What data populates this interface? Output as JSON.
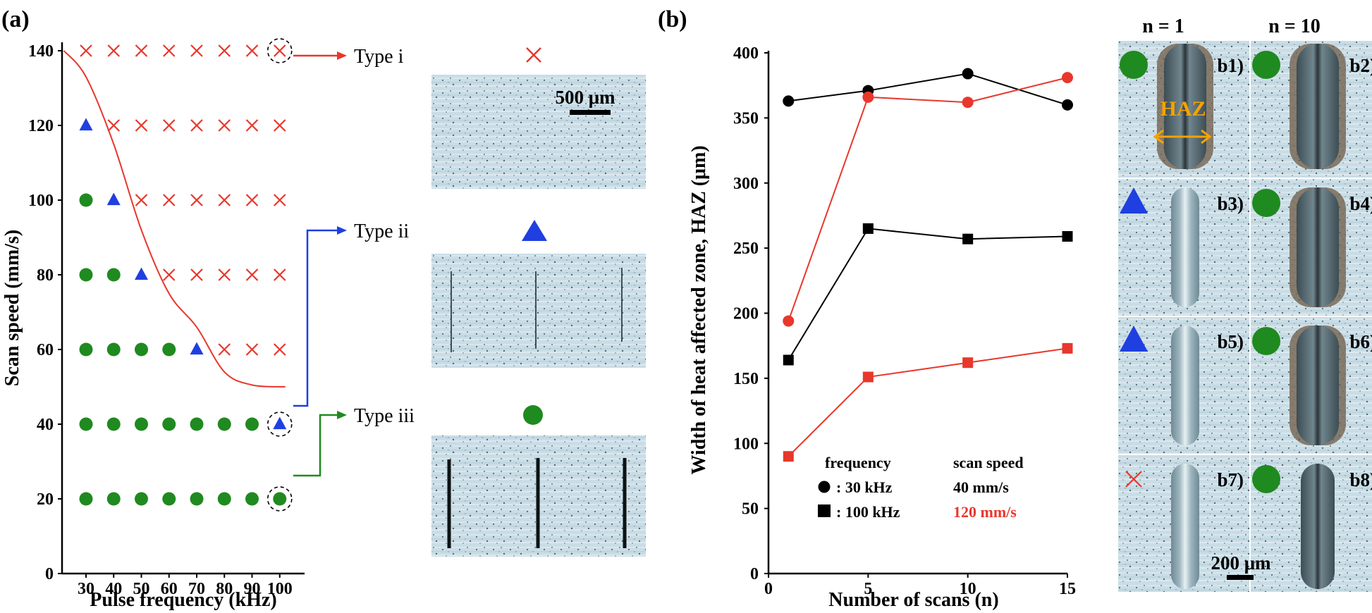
{
  "colors": {
    "red": "#e8372c",
    "blue": "#1f3fe0",
    "green": "#1f8a1f",
    "black": "#000000",
    "haz_arrow": "#f4a300"
  },
  "panel_a": {
    "label": "(a)",
    "scale_bar": "500 μm"
  },
  "panel_b": {
    "label": "(b)",
    "col_n1": "n = 1",
    "col_n10": "n = 10",
    "haz": "HAZ",
    "scale_bar": "200 μm",
    "micrographs": [
      {
        "id": "b1)",
        "marker": "circle"
      },
      {
        "id": "b2)",
        "marker": "circle"
      },
      {
        "id": "b3)",
        "marker": "triangle"
      },
      {
        "id": "b4)",
        "marker": "circle"
      },
      {
        "id": "b5)",
        "marker": "triangle"
      },
      {
        "id": "b6)",
        "marker": "circle"
      },
      {
        "id": "b7)",
        "marker": "cross"
      },
      {
        "id": "b8)",
        "marker": "circle"
      }
    ]
  },
  "chart_data": [
    {
      "type": "scatter",
      "xlabel": "Pulse frequency (kHz)",
      "ylabel": "Scan speed (mm/s)",
      "xticks": [
        30,
        40,
        50,
        60,
        70,
        80,
        90,
        100
      ],
      "yticks": [
        0,
        20,
        40,
        60,
        80,
        100,
        120,
        140
      ],
      "ylim": [
        0,
        140
      ],
      "grid": false,
      "series": [
        {
          "name": "Type i",
          "marker": "cross",
          "points": [
            [
              30,
              140
            ],
            [
              40,
              140
            ],
            [
              50,
              140
            ],
            [
              60,
              140
            ],
            [
              70,
              140
            ],
            [
              80,
              140
            ],
            [
              90,
              140
            ],
            [
              100,
              140
            ],
            [
              40,
              120
            ],
            [
              50,
              120
            ],
            [
              60,
              120
            ],
            [
              70,
              120
            ],
            [
              80,
              120
            ],
            [
              90,
              120
            ],
            [
              100,
              120
            ],
            [
              50,
              100
            ],
            [
              60,
              100
            ],
            [
              70,
              100
            ],
            [
              80,
              100
            ],
            [
              90,
              100
            ],
            [
              100,
              100
            ],
            [
              60,
              80
            ],
            [
              70,
              80
            ],
            [
              80,
              80
            ],
            [
              90,
              80
            ],
            [
              100,
              80
            ],
            [
              80,
              60
            ],
            [
              90,
              60
            ],
            [
              100,
              60
            ]
          ]
        },
        {
          "name": "Type ii",
          "marker": "triangle",
          "points": [
            [
              30,
              120
            ],
            [
              40,
              100
            ],
            [
              50,
              80
            ],
            [
              70,
              60
            ],
            [
              100,
              40
            ]
          ]
        },
        {
          "name": "Type iii",
          "marker": "circle",
          "points": [
            [
              30,
              100
            ],
            [
              30,
              80
            ],
            [
              40,
              80
            ],
            [
              30,
              60
            ],
            [
              40,
              60
            ],
            [
              50,
              60
            ],
            [
              60,
              60
            ],
            [
              30,
              40
            ],
            [
              40,
              40
            ],
            [
              50,
              40
            ],
            [
              60,
              40
            ],
            [
              70,
              40
            ],
            [
              80,
              40
            ],
            [
              90,
              40
            ],
            [
              30,
              20
            ],
            [
              40,
              20
            ],
            [
              50,
              20
            ],
            [
              60,
              20
            ],
            [
              70,
              20
            ],
            [
              80,
              20
            ],
            [
              90,
              20
            ],
            [
              100,
              20
            ]
          ]
        }
      ],
      "boundary_curve": [
        [
          22,
          140
        ],
        [
          30,
          133
        ],
        [
          40,
          115
        ],
        [
          50,
          92
        ],
        [
          60,
          75
        ],
        [
          70,
          66
        ],
        [
          80,
          54
        ],
        [
          90,
          50.5
        ],
        [
          102,
          50
        ]
      ],
      "highlighted": [
        [
          100,
          140
        ],
        [
          100,
          40
        ],
        [
          100,
          20
        ]
      ]
    },
    {
      "type": "line",
      "xlabel": "Number of scans (n)",
      "ylabel": "Width of heat affected zone, HAZ (μm)",
      "xticks": [
        0,
        5,
        10,
        15
      ],
      "yticks": [
        0,
        50,
        100,
        150,
        200,
        250,
        300,
        350,
        400
      ],
      "xlim": [
        0,
        15
      ],
      "ylim": [
        0,
        400
      ],
      "grid": false,
      "x": [
        1,
        5,
        10,
        15
      ],
      "series": [
        {
          "frequency": "30 kHz",
          "speed": "40 mm/s",
          "marker": "circle",
          "color": "#000000",
          "values": [
            363,
            371,
            384,
            360
          ]
        },
        {
          "frequency": "30 kHz",
          "speed": "120 mm/s",
          "marker": "circle",
          "color": "#e8372c",
          "values": [
            194,
            366,
            362,
            381
          ]
        },
        {
          "frequency": "100 kHz",
          "speed": "40 mm/s",
          "marker": "square",
          "color": "#000000",
          "values": [
            164,
            265,
            257,
            259
          ]
        },
        {
          "frequency": "100 kHz",
          "speed": "120 mm/s",
          "marker": "square",
          "color": "#e8372c",
          "values": [
            90,
            151,
            162,
            173
          ]
        }
      ],
      "legend": {
        "position": "bottom-left",
        "freq_header": "frequency",
        "speed_header": "scan speed",
        "freq_30": ": 30 kHz",
        "freq_100": ": 100 kHz",
        "speed_40": "40 mm/s",
        "speed_120": "120 mm/s"
      }
    }
  ],
  "types": [
    {
      "label": "Type i",
      "marker": "cross"
    },
    {
      "label": "Type ii",
      "marker": "triangle"
    },
    {
      "label": "Type iii",
      "marker": "circle"
    }
  ]
}
